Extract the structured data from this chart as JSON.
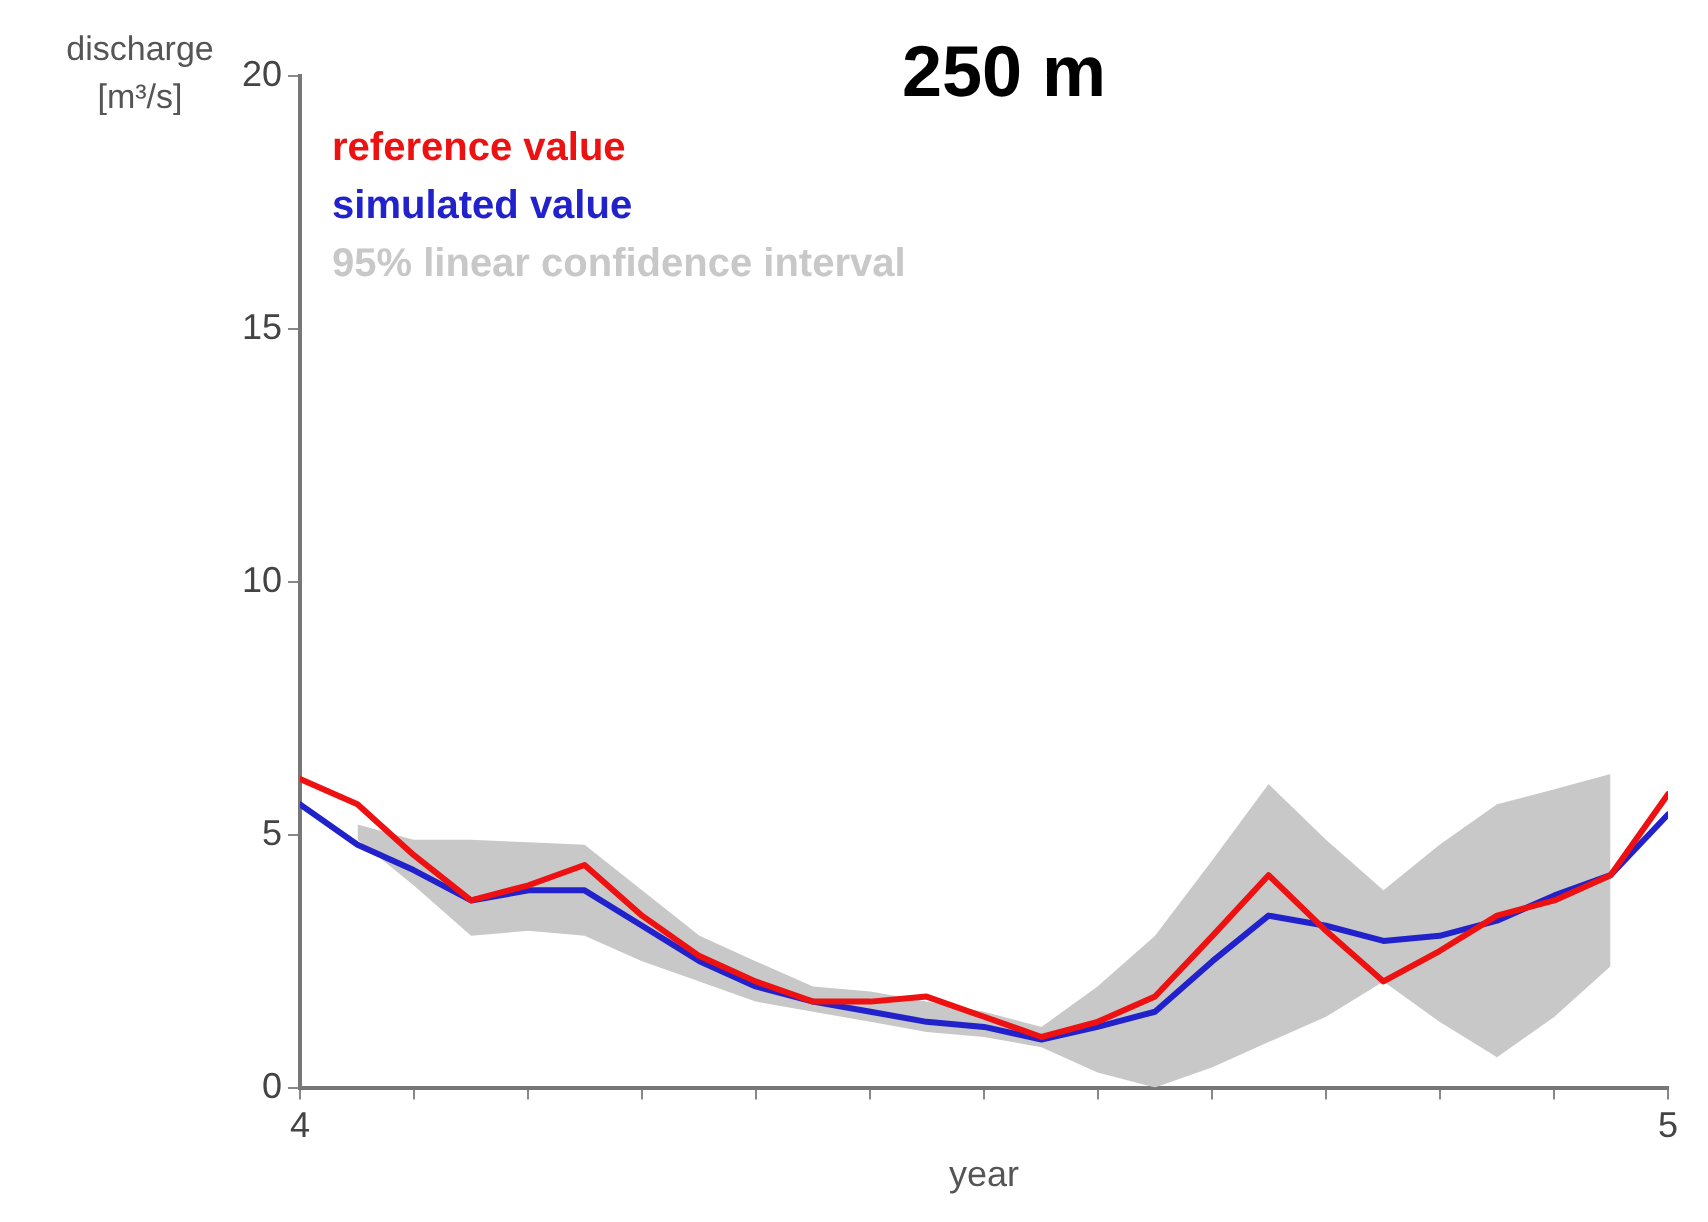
{
  "chart_data": {
    "type": "line",
    "title": "250 m",
    "xlabel": "year",
    "ylabel": "discharge\n[m³/s]",
    "x": [
      4,
      4.042,
      4.083,
      4.125,
      4.167,
      4.208,
      4.25,
      4.292,
      4.333,
      4.375,
      4.417,
      4.458,
      4.5,
      4.542,
      4.583,
      4.625,
      4.667,
      4.708,
      4.75,
      4.792,
      4.833,
      4.875,
      4.917,
      4.958,
      5
    ],
    "xlim": [
      4,
      5
    ],
    "xticks": [
      4,
      {
        "value": 4.083,
        "label": null
      },
      {
        "value": 4.167,
        "label": null
      },
      {
        "value": 4.25,
        "label": null
      },
      {
        "value": 4.333,
        "label": null
      },
      {
        "value": 4.417,
        "label": null
      },
      {
        "value": 4.5,
        "label": null
      },
      {
        "value": 4.583,
        "label": null
      },
      {
        "value": 4.667,
        "label": null
      },
      {
        "value": 4.75,
        "label": null
      },
      {
        "value": 4.833,
        "label": null
      },
      {
        "value": 4.917,
        "label": null
      },
      5
    ],
    "ylim": [
      0,
      20
    ],
    "yticks": [
      0,
      5,
      10,
      15,
      20
    ],
    "grid": false,
    "legend": "top left",
    "marker": "none",
    "line_style": "solid",
    "series": [
      {
        "name": "reference value",
        "color": "#ee1111",
        "values": [
          6.1,
          5.6,
          4.6,
          3.7,
          4.0,
          4.4,
          3.4,
          2.6,
          2.1,
          1.7,
          1.7,
          1.8,
          1.4,
          1.0,
          1.3,
          1.8,
          3.0,
          4.2,
          3.1,
          2.1,
          2.7,
          3.4,
          3.7,
          4.2,
          5.8
        ]
      },
      {
        "name": "simulated value",
        "color": "#2222cc",
        "values": [
          5.6,
          4.8,
          4.3,
          3.7,
          3.9,
          3.9,
          3.2,
          2.5,
          2.0,
          1.7,
          1.5,
          1.3,
          1.2,
          0.95,
          1.2,
          1.5,
          2.5,
          3.4,
          3.2,
          2.9,
          3.0,
          3.3,
          3.8,
          4.2,
          5.4
        ]
      },
      {
        "name": "95% linear confidence interval",
        "type": "area",
        "color": "#c8c8c8",
        "values": [
          null,
          null,
          null,
          null,
          null,
          null,
          null,
          null,
          null,
          null,
          null,
          null,
          null,
          null,
          null,
          null,
          null,
          null,
          null,
          null,
          null,
          null,
          null,
          null,
          null
        ],
        "lower": [
          null,
          4.9,
          4.0,
          3.0,
          3.1,
          3.0,
          2.5,
          2.1,
          1.7,
          1.5,
          1.3,
          1.1,
          1.0,
          0.8,
          0.3,
          0.0,
          0.4,
          0.9,
          1.4,
          2.1,
          1.3,
          0.6,
          1.4,
          2.4,
          null
        ],
        "upper": [
          null,
          5.2,
          4.9,
          4.9,
          4.85,
          4.8,
          3.9,
          3.0,
          2.5,
          2.0,
          1.9,
          1.7,
          1.5,
          1.2,
          2.0,
          3.0,
          4.5,
          6.0,
          4.9,
          3.9,
          4.8,
          5.6,
          5.9,
          6.2,
          null
        ]
      }
    ]
  }
}
